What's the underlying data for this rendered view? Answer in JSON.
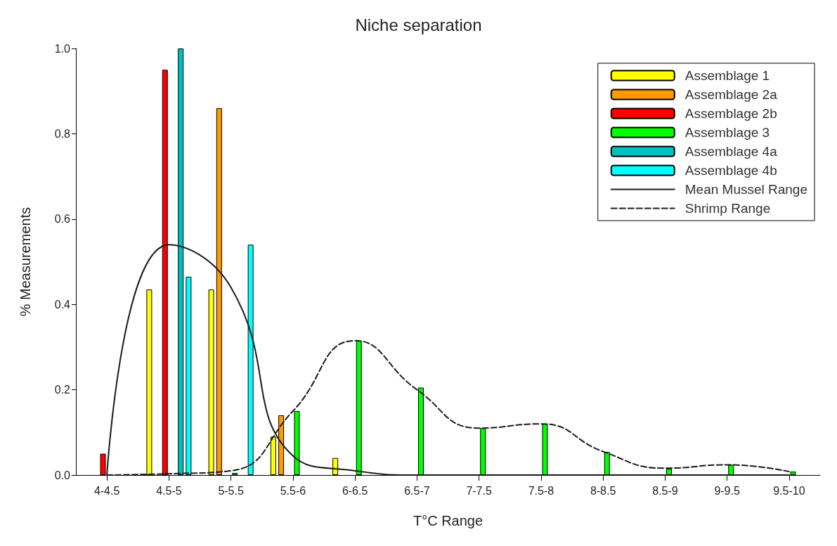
{
  "chart_data": {
    "type": "bar",
    "title": "Niche separation",
    "xlabel": "T°C Range",
    "ylabel": "% Measurements",
    "categories": [
      "4-4.5",
      "4.5-5",
      "5-5.5",
      "5.5-6",
      "6-6.5",
      "6.5-7",
      "7-7.5",
      "7.5-8",
      "8-8.5",
      "8.5-9",
      "9-9.5",
      "9.5-10"
    ],
    "series": [
      {
        "name": "Assemblage 1",
        "color": "#ffff00",
        "values": [
          null,
          0.435,
          0.435,
          0.09,
          0.04,
          null,
          null,
          null,
          null,
          null,
          null,
          null
        ]
      },
      {
        "name": "Assemblage 2a",
        "color": "#ff9900",
        "values": [
          null,
          null,
          0.86,
          0.14,
          null,
          null,
          null,
          null,
          null,
          null,
          null,
          null
        ]
      },
      {
        "name": "Assemblage 2b",
        "color": "#ff0000",
        "values": [
          0.05,
          0.95,
          null,
          null,
          null,
          null,
          null,
          null,
          null,
          null,
          null,
          null
        ]
      },
      {
        "name": "Assemblage 3",
        "color": "#00ff00",
        "values": [
          null,
          null,
          0.005,
          0.15,
          0.315,
          0.205,
          0.11,
          0.12,
          0.054,
          0.015,
          0.024,
          0.008
        ]
      },
      {
        "name": "Assemblage 4a",
        "color": "#00c0c0",
        "values": [
          null,
          1.0,
          null,
          null,
          null,
          null,
          null,
          null,
          null,
          null,
          null,
          null
        ]
      },
      {
        "name": "Assemblage 4b",
        "color": "#00ffff",
        "values": [
          null,
          0.465,
          0.54,
          null,
          null,
          null,
          null,
          null,
          null,
          null,
          null,
          null
        ]
      },
      {
        "name": "Mean Mussel Range",
        "type": "line",
        "color": "#1a1a1a",
        "line_style": "solid",
        "values": [
          0,
          0.54,
          0.44,
          0.045,
          0.01,
          0,
          0,
          0,
          0,
          0,
          0,
          0
        ]
      },
      {
        "name": "Shrimp Range",
        "type": "line",
        "color": "#1a1a1a",
        "line_style": "dashed",
        "values": [
          0,
          0.003,
          0.01,
          0.15,
          0.315,
          0.2,
          0.11,
          0.12,
          0.055,
          0.016,
          0.024,
          0.008
        ]
      }
    ],
    "ylim": [
      0,
      1
    ],
    "yticks": [
      {
        "value": 0,
        "label": "0.0"
      },
      {
        "value": 0.2,
        "label": "0.2"
      },
      {
        "value": 0.4,
        "label": "0.4"
      },
      {
        "value": 0.6,
        "label": "0.6"
      },
      {
        "value": 0.8,
        "label": "0.8"
      },
      {
        "value": 1,
        "label": "1.0"
      }
    ],
    "grid": false,
    "legend": "top right",
    "marker": "none"
  }
}
